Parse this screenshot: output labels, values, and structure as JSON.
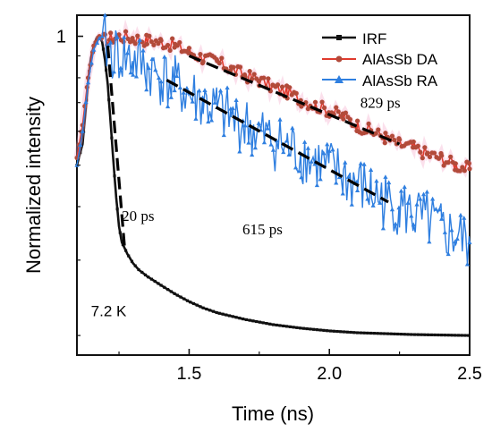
{
  "chart_data": {
    "type": "line",
    "title": "",
    "xlabel": "Time (ns)",
    "ylabel": "Normalized intensity",
    "xlim": [
      1.1,
      2.5
    ],
    "ylim": [
      0.18,
      1.12
    ],
    "y_scale": "log",
    "x_ticks": [
      {
        "value": 1.5,
        "label": "1.5"
      },
      {
        "value": 2.0,
        "label": "2.0"
      },
      {
        "value": 2.5,
        "label": "2.5"
      }
    ],
    "y_ticks": [
      {
        "value": 1.0,
        "label": "1"
      }
    ],
    "grid": false,
    "legend_position": "top-right",
    "series": [
      {
        "name": "IRF",
        "color": "#111111",
        "marker": "square",
        "x": [
          1.1,
          1.12,
          1.13,
          1.14,
          1.15,
          1.16,
          1.17,
          1.18,
          1.19,
          1.2,
          1.21,
          1.22,
          1.23,
          1.24,
          1.25,
          1.26,
          1.27,
          1.28,
          1.3,
          1.32,
          1.35,
          1.4,
          1.45,
          1.5,
          1.55,
          1.6,
          1.7,
          1.8,
          1.9,
          2.0,
          2.1,
          2.2,
          2.3,
          2.4,
          2.5
        ],
        "y": [
          0.5,
          0.56,
          0.66,
          0.79,
          0.89,
          0.95,
          0.99,
          1.0,
          0.97,
          0.88,
          0.77,
          0.63,
          0.51,
          0.42,
          0.36,
          0.33,
          0.32,
          0.31,
          0.295,
          0.285,
          0.275,
          0.262,
          0.25,
          0.24,
          0.232,
          0.226,
          0.218,
          0.212,
          0.208,
          0.205,
          0.203,
          0.202,
          0.201,
          0.2005,
          0.2
        ]
      },
      {
        "name": "AlAsSb DA",
        "color": "#e03a2e",
        "marker": "circle",
        "x": [
          1.1,
          1.12,
          1.14,
          1.16,
          1.18,
          1.2,
          1.22,
          1.25,
          1.3,
          1.35,
          1.4,
          1.45,
          1.5,
          1.55,
          1.6,
          1.65,
          1.7,
          1.75,
          1.8,
          1.85,
          1.9,
          1.95,
          2.0,
          2.05,
          2.1,
          2.15,
          2.2,
          2.25,
          2.3,
          2.35,
          2.4,
          2.45,
          2.5
        ],
        "y": [
          0.52,
          0.62,
          0.8,
          0.95,
          1.0,
          0.98,
          0.99,
          1.0,
          0.99,
          0.98,
          0.97,
          0.95,
          0.92,
          0.89,
          0.87,
          0.84,
          0.81,
          0.79,
          0.76,
          0.74,
          0.71,
          0.69,
          0.67,
          0.65,
          0.62,
          0.6,
          0.58,
          0.56,
          0.55,
          0.53,
          0.52,
          0.5,
          0.49
        ]
      },
      {
        "name": "AlAsSb RA",
        "color": "#2f7fe0",
        "marker": "triangle",
        "x": [
          1.1,
          1.12,
          1.14,
          1.16,
          1.18,
          1.19,
          1.2,
          1.22,
          1.25,
          1.3,
          1.35,
          1.4,
          1.45,
          1.5,
          1.55,
          1.6,
          1.65,
          1.7,
          1.75,
          1.8,
          1.85,
          1.9,
          1.95,
          2.0,
          2.05,
          2.1,
          2.15,
          2.2,
          2.25,
          2.3,
          2.35,
          2.4,
          2.45,
          2.5
        ],
        "y": [
          0.5,
          0.6,
          0.78,
          0.93,
          0.99,
          1.0,
          0.96,
          0.92,
          0.9,
          0.88,
          0.84,
          0.8,
          0.77,
          0.73,
          0.7,
          0.67,
          0.64,
          0.62,
          0.59,
          0.57,
          0.55,
          0.53,
          0.51,
          0.49,
          0.47,
          0.45,
          0.43,
          0.41,
          0.4,
          0.38,
          0.37,
          0.35,
          0.34,
          0.33
        ]
      }
    ],
    "fits": [
      {
        "name": "fit-irf",
        "label": "20 ps",
        "x": [
          1.21,
          1.27
        ],
        "y": [
          0.95,
          0.32
        ],
        "label_at": [
          1.26,
          0.37
        ]
      },
      {
        "name": "fit-da",
        "label": "829 ps",
        "x": [
          1.5,
          2.25
        ],
        "y": [
          0.9,
          0.56
        ],
        "label_at": [
          2.11,
          0.68
        ]
      },
      {
        "name": "fit-ra",
        "label": "615 ps",
        "x": [
          1.42,
          2.21
        ],
        "y": [
          0.79,
          0.41
        ],
        "label_at": [
          1.69,
          0.345
        ]
      }
    ],
    "annotations": [
      {
        "text": "7.2 K",
        "at": [
          1.15,
          0.222
        ]
      }
    ]
  }
}
